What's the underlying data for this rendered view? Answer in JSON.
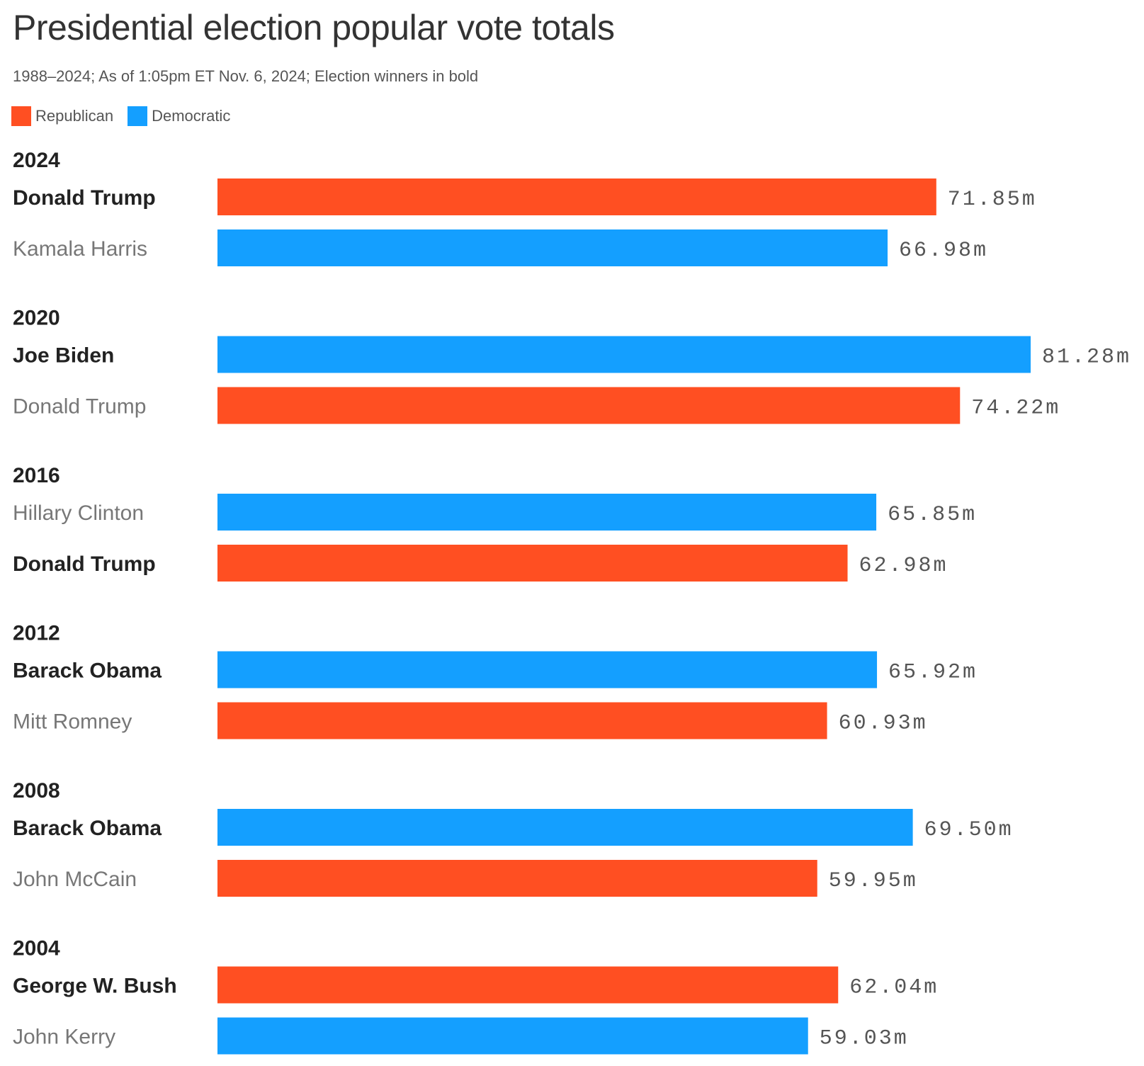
{
  "title": "Presidential election popular vote totals",
  "subtitle": "1988–2024; As of 1:05pm ET Nov. 6, 2024; Election winners in bold",
  "legend": [
    {
      "label": "Republican",
      "color": "#FF4F22"
    },
    {
      "label": "Democratic",
      "color": "#149FFF"
    }
  ],
  "chart_data": {
    "type": "bar",
    "orientation": "horizontal",
    "unit": "m",
    "groups": [
      {
        "year": "2024",
        "candidates": [
          {
            "name": "Donald Trump",
            "party": "Republican",
            "value": 71.85,
            "label": "71.85m",
            "winner": true
          },
          {
            "name": "Kamala Harris",
            "party": "Democratic",
            "value": 66.98,
            "label": "66.98m",
            "winner": false
          }
        ]
      },
      {
        "year": "2020",
        "candidates": [
          {
            "name": "Joe Biden",
            "party": "Democratic",
            "value": 81.28,
            "label": "81.28m",
            "winner": true
          },
          {
            "name": "Donald Trump",
            "party": "Republican",
            "value": 74.22,
            "label": "74.22m",
            "winner": false
          }
        ]
      },
      {
        "year": "2016",
        "candidates": [
          {
            "name": "Hillary Clinton",
            "party": "Democratic",
            "value": 65.85,
            "label": "65.85m",
            "winner": false
          },
          {
            "name": "Donald Trump",
            "party": "Republican",
            "value": 62.98,
            "label": "62.98m",
            "winner": true
          }
        ]
      },
      {
        "year": "2012",
        "candidates": [
          {
            "name": "Barack Obama",
            "party": "Democratic",
            "value": 65.92,
            "label": "65.92m",
            "winner": true
          },
          {
            "name": "Mitt Romney",
            "party": "Republican",
            "value": 60.93,
            "label": "60.93m",
            "winner": false
          }
        ]
      },
      {
        "year": "2008",
        "candidates": [
          {
            "name": "Barack Obama",
            "party": "Democratic",
            "value": 69.5,
            "label": "69.50m",
            "winner": true
          },
          {
            "name": "John McCain",
            "party": "Republican",
            "value": 59.95,
            "label": "59.95m",
            "winner": false
          }
        ]
      },
      {
        "year": "2004",
        "candidates": [
          {
            "name": "George W. Bush",
            "party": "Republican",
            "value": 62.04,
            "label": "62.04m",
            "winner": true
          },
          {
            "name": "John Kerry",
            "party": "Democratic",
            "value": 59.03,
            "label": "59.03m",
            "winner": false
          }
        ]
      }
    ],
    "xlim": [
      0,
      81.28
    ],
    "grid": false,
    "legend_position": "top-left"
  }
}
